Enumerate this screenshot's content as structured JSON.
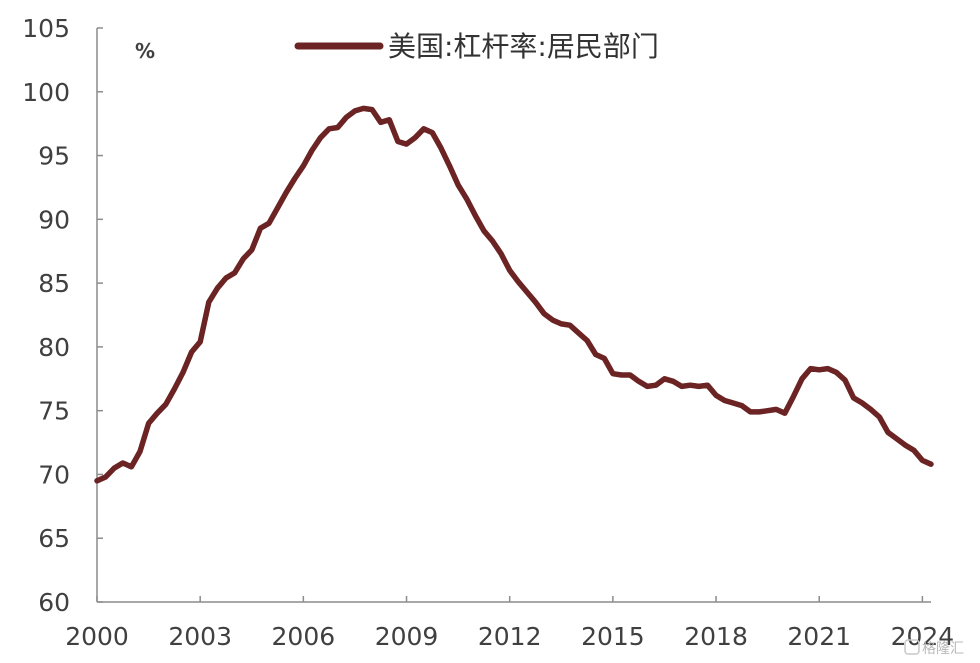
{
  "chart_data": {
    "type": "line",
    "unit_label": "%",
    "series": [
      {
        "name": "美国:杠杆率:居民部门",
        "color": "#6b2323",
        "x": [
          2000.0,
          2000.25,
          2000.5,
          2000.75,
          2001.0,
          2001.25,
          2001.5,
          2001.75,
          2002.0,
          2002.25,
          2002.5,
          2002.75,
          2003.0,
          2003.25,
          2003.5,
          2003.75,
          2004.0,
          2004.25,
          2004.5,
          2004.75,
          2005.0,
          2005.25,
          2005.5,
          2005.75,
          2006.0,
          2006.25,
          2006.5,
          2006.75,
          2007.0,
          2007.25,
          2007.5,
          2007.75,
          2008.0,
          2008.25,
          2008.5,
          2008.75,
          2009.0,
          2009.25,
          2009.5,
          2009.75,
          2010.0,
          2010.25,
          2010.5,
          2010.75,
          2011.0,
          2011.25,
          2011.5,
          2011.75,
          2012.0,
          2012.25,
          2012.5,
          2012.75,
          2013.0,
          2013.25,
          2013.5,
          2013.75,
          2014.0,
          2014.25,
          2014.5,
          2014.75,
          2015.0,
          2015.25,
          2015.5,
          2015.75,
          2016.0,
          2016.25,
          2016.5,
          2016.75,
          2017.0,
          2017.25,
          2017.5,
          2017.75,
          2018.0,
          2018.25,
          2018.5,
          2018.75,
          2019.0,
          2019.25,
          2019.5,
          2019.75,
          2020.0,
          2020.25,
          2020.5,
          2020.75,
          2021.0,
          2021.25,
          2021.5,
          2021.75,
          2022.0,
          2022.25,
          2022.5,
          2022.75,
          2023.0,
          2023.25,
          2023.5,
          2023.75,
          2024.0,
          2024.25
        ],
        "values": [
          69.5,
          69.8,
          70.5,
          70.9,
          70.6,
          71.8,
          74.0,
          74.8,
          75.5,
          76.7,
          78.0,
          79.6,
          80.4,
          83.5,
          84.6,
          85.4,
          85.8,
          86.9,
          87.6,
          89.3,
          89.7,
          90.9,
          92.1,
          93.2,
          94.2,
          95.4,
          96.4,
          97.1,
          97.2,
          98.0,
          98.5,
          98.7,
          98.6,
          97.6,
          97.8,
          96.1,
          95.9,
          96.4,
          97.1,
          96.8,
          95.6,
          94.2,
          92.7,
          91.6,
          90.3,
          89.1,
          88.3,
          87.3,
          86.0,
          85.1,
          84.3,
          83.5,
          82.6,
          82.1,
          81.8,
          81.7,
          81.1,
          80.5,
          79.4,
          79.1,
          77.9,
          77.8,
          77.8,
          77.3,
          76.9,
          77.0,
          77.5,
          77.3,
          76.9,
          77.0,
          76.9,
          77.0,
          76.2,
          75.8,
          75.6,
          75.4,
          74.9,
          74.9,
          75.0,
          75.1,
          74.8,
          76.1,
          77.5,
          78.3,
          78.2,
          78.3,
          78.0,
          77.4,
          76.0,
          75.6,
          75.1,
          74.5,
          73.3,
          72.8,
          72.3,
          71.9,
          71.1,
          70.8
        ]
      }
    ],
    "x_ticks": [
      "2000",
      "2003",
      "2006",
      "2009",
      "2012",
      "2015",
      "2018",
      "2021",
      "2024"
    ],
    "x_tick_values": [
      2000,
      2003,
      2006,
      2009,
      2012,
      2015,
      2018,
      2021,
      2024
    ],
    "y_ticks": [
      60,
      65,
      70,
      75,
      80,
      85,
      90,
      95,
      100,
      105
    ],
    "ylim": [
      60,
      105
    ],
    "xlim": [
      2000,
      2024.25
    ],
    "grid": false,
    "legend_placement": "top-center"
  },
  "watermark": "格隆汇"
}
